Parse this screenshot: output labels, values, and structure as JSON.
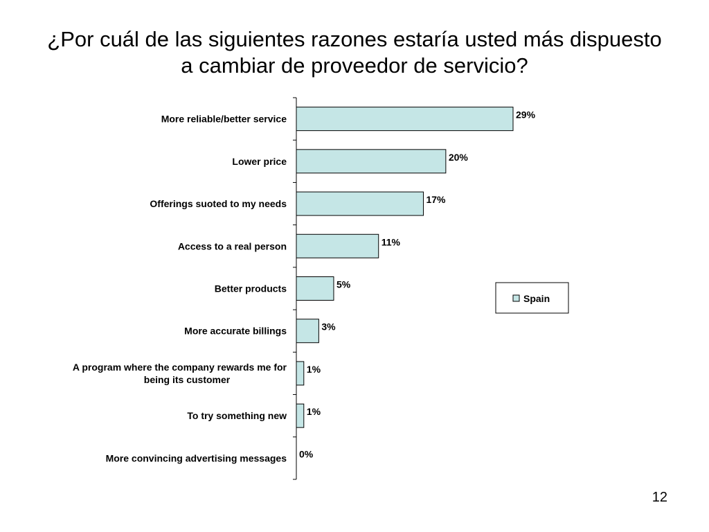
{
  "slide": {
    "title": "¿Por cuál de las siguientes razones estaría usted más dispuesto  a cambiar de proveedor de servicio?",
    "page_number": "12"
  },
  "chart_data": {
    "type": "bar",
    "orientation": "horizontal",
    "categories": [
      "More reliable/better service",
      "Lower price",
      "Offerings suoted to my needs",
      "Access to a real person",
      "Better products",
      "More accurate billings",
      "A program where the company rewards me for being its customer",
      "To try something new",
      "More convincing advertising messages"
    ],
    "series": [
      {
        "name": "Spain",
        "values": [
          29,
          20,
          17,
          11,
          5,
          3,
          1,
          1,
          0
        ],
        "labels": [
          "29%",
          "20%",
          "17%",
          "11%",
          "5%",
          "3%",
          "1%",
          "1%",
          "0%"
        ]
      }
    ],
    "xlim": [
      0,
      29
    ],
    "value_unit": "%",
    "legend": {
      "position": "right",
      "entries": [
        "Spain"
      ]
    },
    "bar_color": "#c5e6e6",
    "bar_stroke": "#000000",
    "grid": false
  }
}
